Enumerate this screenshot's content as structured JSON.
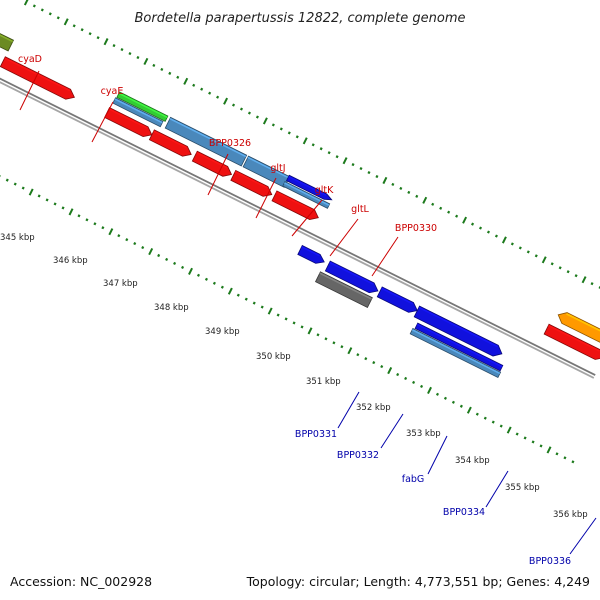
{
  "title": "Bordetella parapertussis 12822, complete genome",
  "footer": {
    "accession": "Accession: NC_002928",
    "summary": "Topology: circular; Length: 4,773,551 bp; Genes: 4,249"
  },
  "colors": {
    "backbone": "#8c8c8c",
    "tick": "#1c7a1c",
    "forward_label": "#cc0000",
    "reverse_label": "#0000aa",
    "red": "#ee1111",
    "blue": "#1111dd",
    "steel": "#4a88bb",
    "green": "#33cc33",
    "olive": "#6b8a22",
    "gray": "#666666",
    "orange": "#ff9900"
  },
  "scale_labels": [
    {
      "text": "345 kbp"
    },
    {
      "text": "346 kbp"
    },
    {
      "text": "347 kbp"
    },
    {
      "text": "348 kbp"
    },
    {
      "text": "349 kbp"
    },
    {
      "text": "350 kbp"
    },
    {
      "text": "351 kbp"
    },
    {
      "text": "352 kbp"
    },
    {
      "text": "353 kbp"
    },
    {
      "text": "354 kbp"
    },
    {
      "text": "355 kbp"
    },
    {
      "text": "356 kbp"
    }
  ],
  "gene_labels": [
    {
      "text": "cyaD",
      "strand": "forward"
    },
    {
      "text": "cyaE",
      "strand": "forward"
    },
    {
      "text": "BPP0326",
      "strand": "forward"
    },
    {
      "text": "gltJ",
      "strand": "forward"
    },
    {
      "text": "gltK",
      "strand": "forward"
    },
    {
      "text": "gltL",
      "strand": "forward"
    },
    {
      "text": "BPP0330",
      "strand": "forward"
    },
    {
      "text": "BPP0331",
      "strand": "reverse"
    },
    {
      "text": "BPP0332",
      "strand": "reverse"
    },
    {
      "text": "fabG",
      "strand": "reverse"
    },
    {
      "text": "BPP0334",
      "strand": "reverse"
    },
    {
      "text": "BPP0336",
      "strand": "reverse"
    }
  ]
}
